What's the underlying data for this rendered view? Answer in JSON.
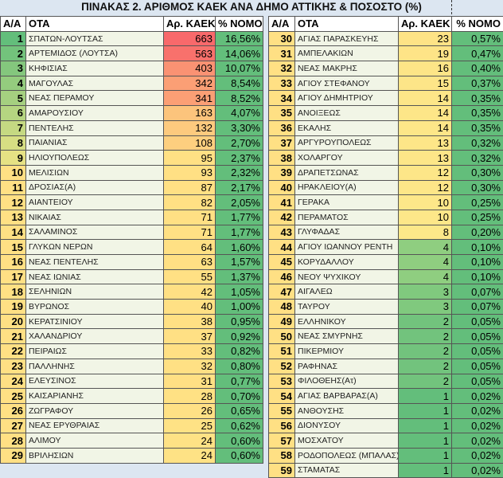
{
  "title": "ΠΙΝΑΚΑΣ 2. ΑΡΙΘΜΟΣ ΚΑΕΚ ΑΝΑ ΔΗΜΟ ΑΤΤΙΚΗΣ & ΠΟΣΟΣΤΟ (%)",
  "headers": [
    "Α/Α",
    "ΟΤΑ",
    "Αρ. ΚΑΕΚ",
    "% ΝΟΜΟ"
  ],
  "colors": {
    "name_bg": "#f1f5e6",
    "pct_bg": "#63be7b",
    "high": "#f8696b",
    "mid": "#ffe084",
    "low": "#63be7b",
    "page_bg": "#dce6f1"
  },
  "left_rows": [
    [
      "1",
      "ΣΠΑΤΩΝ-ΛΟΥΤΣΑΣ",
      "663",
      "16,56%"
    ],
    [
      "2",
      "ΑΡΤΕΜΙΔΟΣ (ΛΟΥΤΣΑ)",
      "563",
      "14,06%"
    ],
    [
      "3",
      "ΚΗΦΙΣΙΑΣ",
      "403",
      "10,07%"
    ],
    [
      "4",
      "ΜΑΓΟΥΛΑΣ",
      "342",
      "8,54%"
    ],
    [
      "5",
      "ΝΕΑΣ ΠΕΡΑΜΟΥ",
      "341",
      "8,52%"
    ],
    [
      "6",
      "ΑΜΑΡΟΥΣΙΟΥ",
      "163",
      "4,07%"
    ],
    [
      "7",
      "ΠΕΝΤΕΛΗΣ",
      "132",
      "3,30%"
    ],
    [
      "8",
      "ΠΑΙΑΝΙΑΣ",
      "108",
      "2,70%"
    ],
    [
      "9",
      "ΗΛΙΟΥΠΟΛΕΩΣ",
      "95",
      "2,37%"
    ],
    [
      "10",
      "ΜΕΛΙΣΙΩΝ",
      "93",
      "2,32%"
    ],
    [
      "11",
      "ΔΡΟΣΙΑΣ(Α)",
      "87",
      "2,17%"
    ],
    [
      "12",
      "ΑΙΑΝΤΕΙΟΥ",
      "82",
      "2,05%"
    ],
    [
      "13",
      "ΝΙΚΑΙΑΣ",
      "71",
      "1,77%"
    ],
    [
      "14",
      "ΣΑΛΑΜΙΝΟΣ",
      "71",
      "1,77%"
    ],
    [
      "15",
      "ΓΛΥΚΩΝ ΝΕΡΩΝ",
      "64",
      "1,60%"
    ],
    [
      "16",
      "ΝΕΑΣ ΠΕΝΤΕΛΗΣ",
      "63",
      "1,57%"
    ],
    [
      "17",
      "ΝΕΑΣ ΙΩΝΙΑΣ",
      "55",
      "1,37%"
    ],
    [
      "18",
      "ΣΕΛΗΝΙΩΝ",
      "42",
      "1,05%"
    ],
    [
      "19",
      "ΒΥΡΩΝΟΣ",
      "40",
      "1,00%"
    ],
    [
      "20",
      "ΚΕΡΑΤΣΙΝΙΟΥ",
      "38",
      "0,95%"
    ],
    [
      "21",
      "ΧΑΛΑΝΔΡΙΟΥ",
      "37",
      "0,92%"
    ],
    [
      "22",
      "ΠΕΙΡΑΙΩΣ",
      "33",
      "0,82%"
    ],
    [
      "23",
      "ΠΑΛΛΗΝΗΣ",
      "32",
      "0,80%"
    ],
    [
      "24",
      "ΕΛΕΥΣΙΝΟΣ",
      "31",
      "0,77%"
    ],
    [
      "25",
      "ΚΑΙΣΑΡΙΑΝΗΣ",
      "28",
      "0,70%"
    ],
    [
      "26",
      "ΖΩΓΡΑΦΟΥ",
      "26",
      "0,65%"
    ],
    [
      "27",
      "ΝΕΑΣ ΕΡΥΘΡΑΙΑΣ",
      "25",
      "0,62%"
    ],
    [
      "28",
      "ΑΛΙΜΟΥ",
      "24",
      "0,60%"
    ],
    [
      "29",
      "ΒΡΙΛΗΣΙΩΝ",
      "24",
      "0,60%"
    ]
  ],
  "right_rows": [
    [
      "30",
      "ΑΓΙΑΣ ΠΑΡΑΣΚΕΥΗΣ",
      "23",
      "0,57%"
    ],
    [
      "31",
      "ΑΜΠΕΛΑΚΙΩΝ",
      "19",
      "0,47%"
    ],
    [
      "32",
      "ΝΕΑΣ ΜΑΚΡΗΣ",
      "16",
      "0,40%"
    ],
    [
      "33",
      "ΑΓΙΟΥ ΣΤΕΦΑΝΟΥ",
      "15",
      "0,37%"
    ],
    [
      "34",
      "ΑΓΙΟΥ ΔΗΜΗΤΡΙΟΥ",
      "14",
      "0,35%"
    ],
    [
      "35",
      "ΑΝΟΙΞΕΩΣ",
      "14",
      "0,35%"
    ],
    [
      "36",
      "ΕΚΑΛΗΣ",
      "14",
      "0,35%"
    ],
    [
      "37",
      "ΑΡΓΥΡΟΥΠΟΛΕΩΣ",
      "13",
      "0,32%"
    ],
    [
      "38",
      "ΧΟΛΑΡΓΟΥ",
      "13",
      "0,32%"
    ],
    [
      "39",
      "ΔΡΑΠΕΤΣΩΝΑΣ",
      "12",
      "0,30%"
    ],
    [
      "40",
      "ΗΡΑΚΛΕΙΟΥ(Α)",
      "12",
      "0,30%"
    ],
    [
      "41",
      "ΓΕΡΑΚΑ",
      "10",
      "0,25%"
    ],
    [
      "42",
      "ΠΕΡΑΜΑΤΟΣ",
      "10",
      "0,25%"
    ],
    [
      "43",
      "ΓΛΥΦΑΔΑΣ",
      "8",
      "0,20%"
    ],
    [
      "44",
      "ΑΓΙΟΥ ΙΩΑΝΝΟΥ ΡΕΝΤΗ",
      "4",
      "0,10%"
    ],
    [
      "45",
      "ΚΟΡΥΔΑΛΛΟΥ",
      "4",
      "0,10%"
    ],
    [
      "46",
      "ΝΕΟΥ ΨΥΧΙΚΟΥ",
      "4",
      "0,10%"
    ],
    [
      "47",
      "ΑΙΓΑΛΕΩ",
      "3",
      "0,07%"
    ],
    [
      "48",
      "ΤΑΥΡΟΥ",
      "3",
      "0,07%"
    ],
    [
      "49",
      "ΕΛΛΗΝΙΚΟΥ",
      "2",
      "0,05%"
    ],
    [
      "50",
      "ΝΕΑΣ ΣΜΥΡΝΗΣ",
      "2",
      "0,05%"
    ],
    [
      "51",
      "ΠΙΚΕΡΜΙΟΥ",
      "2",
      "0,05%"
    ],
    [
      "52",
      "ΡΑΦΗΝΑΣ",
      "2",
      "0,05%"
    ],
    [
      "53",
      "ΦΙΛΟΘΕΗΣ(Ατ)",
      "2",
      "0,05%"
    ],
    [
      "54",
      "ΑΓΙΑΣ ΒΑΡΒΑΡΑΣ(Α)",
      "1",
      "0,02%"
    ],
    [
      "55",
      "ΑΝΘΟΥΣΗΣ",
      "1",
      "0,02%"
    ],
    [
      "56",
      "ΔΙΟΝΥΣΟΥ",
      "1",
      "0,02%"
    ],
    [
      "57",
      "ΜΟΣΧΑΤΟΥ",
      "1",
      "0,02%"
    ],
    [
      "58",
      "ΡΟΔΟΠΟΛΕΩΣ (ΜΠΑΛΑΣ)",
      "1",
      "0,02%"
    ],
    [
      "59",
      "ΣΤΑΜΑΤΑΣ",
      "1",
      "0,02%"
    ]
  ]
}
